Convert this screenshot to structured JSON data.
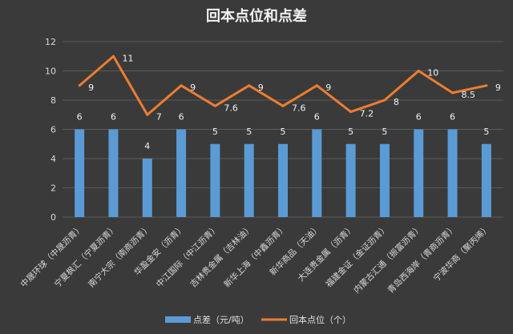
{
  "chart_data": {
    "type": "bar",
    "title": "回本点位和点差",
    "xlabel": "",
    "ylabel": "",
    "ylim": [
      0,
      12
    ],
    "yticks": [
      0,
      2,
      4,
      6,
      8,
      10,
      12
    ],
    "grid": true,
    "legend_position": "bottom",
    "categories": [
      "中晟环球（中晟沥青）",
      "宁夏枫汇（宁夏沥青）",
      "南宁大宗（南商沥青）",
      "华盈金安（沥青）",
      "中江国际（中江沥青）",
      "吉林贵金属（吉林油）",
      "新华上海（中鑫沥青）",
      "新华商品（天油）",
      "大连贵金属（沥青）",
      "福建金证（金证沥青）",
      "内蒙古汇通（振富沥青）",
      "青岛西海岸（青商沥青）",
      "宁波华商（聚丙烯）"
    ],
    "series": [
      {
        "name": "点差（元/吨）",
        "type": "bar",
        "color": "#5b9bd5",
        "values": [
          6,
          6,
          4,
          6,
          5,
          5,
          5,
          6,
          5,
          5,
          6,
          6,
          5
        ],
        "labels": [
          "6",
          "6",
          "4",
          "6",
          "5",
          "5",
          "5",
          "6",
          "5",
          "5",
          "6",
          "6",
          "5"
        ]
      },
      {
        "name": "回本点位（个）",
        "type": "line",
        "color": "#ed7d31",
        "values": [
          9,
          11,
          7,
          9,
          7.6,
          9,
          7.6,
          9,
          7.2,
          8,
          10,
          8.5,
          9
        ],
        "labels": [
          "9",
          "11",
          "7",
          "9",
          "7.6",
          "9",
          "7.6",
          "9",
          "7.2",
          "8",
          "10",
          "8.5",
          "9"
        ]
      }
    ]
  }
}
